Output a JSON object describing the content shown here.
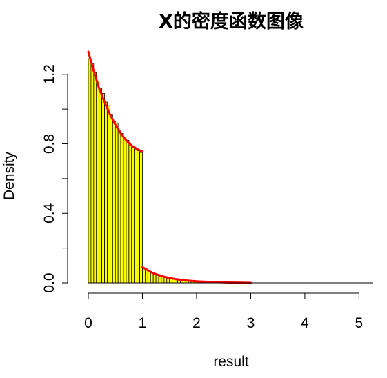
{
  "chart_data": {
    "type": "bar",
    "title": "X的密度函数图像",
    "xlabel": "result",
    "ylabel": "Density",
    "xlim": [
      0,
      5.25
    ],
    "ylim": [
      0,
      1.35
    ],
    "x_ticks": [
      "0",
      "1",
      "2",
      "3",
      "4",
      "5"
    ],
    "y_ticks": [
      "0.0",
      "0.4",
      "0.8",
      "1.2"
    ],
    "grid": false,
    "histogram": {
      "bin_width": 0.05,
      "bins": [
        {
          "x": 0.0,
          "y": 1.29
        },
        {
          "x": 0.05,
          "y": 1.26
        },
        {
          "x": 0.1,
          "y": 1.21
        },
        {
          "x": 0.15,
          "y": 1.16
        },
        {
          "x": 0.2,
          "y": 1.12
        },
        {
          "x": 0.25,
          "y": 1.09
        },
        {
          "x": 0.3,
          "y": 1.04
        },
        {
          "x": 0.35,
          "y": 1.02
        },
        {
          "x": 0.4,
          "y": 0.97
        },
        {
          "x": 0.45,
          "y": 0.93
        },
        {
          "x": 0.5,
          "y": 0.92
        },
        {
          "x": 0.55,
          "y": 0.88
        },
        {
          "x": 0.6,
          "y": 0.86
        },
        {
          "x": 0.65,
          "y": 0.83
        },
        {
          "x": 0.7,
          "y": 0.82
        },
        {
          "x": 0.75,
          "y": 0.79
        },
        {
          "x": 0.8,
          "y": 0.78
        },
        {
          "x": 0.85,
          "y": 0.77
        },
        {
          "x": 0.9,
          "y": 0.76
        },
        {
          "x": 0.95,
          "y": 0.75
        },
        {
          "x": 1.0,
          "y": 0.085
        },
        {
          "x": 1.05,
          "y": 0.075
        },
        {
          "x": 1.1,
          "y": 0.065
        },
        {
          "x": 1.15,
          "y": 0.057
        },
        {
          "x": 1.2,
          "y": 0.05
        },
        {
          "x": 1.25,
          "y": 0.044
        },
        {
          "x": 1.3,
          "y": 0.038
        },
        {
          "x": 1.35,
          "y": 0.034
        },
        {
          "x": 1.4,
          "y": 0.03
        },
        {
          "x": 1.45,
          "y": 0.026
        },
        {
          "x": 1.5,
          "y": 0.023
        },
        {
          "x": 1.55,
          "y": 0.02
        },
        {
          "x": 1.6,
          "y": 0.017
        },
        {
          "x": 1.65,
          "y": 0.015
        },
        {
          "x": 1.7,
          "y": 0.013
        },
        {
          "x": 1.75,
          "y": 0.011
        },
        {
          "x": 1.8,
          "y": 0.01
        },
        {
          "x": 1.85,
          "y": 0.009
        },
        {
          "x": 1.9,
          "y": 0.008
        },
        {
          "x": 1.95,
          "y": 0.007
        },
        {
          "x": 2.0,
          "y": 0.006
        },
        {
          "x": 2.05,
          "y": 0.005
        },
        {
          "x": 2.1,
          "y": 0.004
        },
        {
          "x": 2.15,
          "y": 0.004
        },
        {
          "x": 2.2,
          "y": 0.003
        },
        {
          "x": 2.25,
          "y": 0.003
        },
        {
          "x": 2.3,
          "y": 0.002
        }
      ],
      "fill_color": "#ffff00",
      "stroke_color": "#000000"
    },
    "density_curve": {
      "color": "#ff0000",
      "segments": [
        [
          [
            0.0,
            1.33
          ],
          [
            0.1,
            1.22
          ],
          [
            0.2,
            1.12
          ],
          [
            0.3,
            1.04
          ],
          [
            0.4,
            0.97
          ],
          [
            0.5,
            0.91
          ],
          [
            0.6,
            0.86
          ],
          [
            0.7,
            0.82
          ],
          [
            0.8,
            0.79
          ],
          [
            0.9,
            0.77
          ],
          [
            1.0,
            0.755
          ]
        ],
        [
          [
            1.0,
            0.09
          ],
          [
            1.2,
            0.055
          ],
          [
            1.4,
            0.035
          ],
          [
            1.6,
            0.022
          ],
          [
            1.8,
            0.014
          ],
          [
            2.0,
            0.009
          ],
          [
            2.2,
            0.006
          ],
          [
            2.4,
            0.004
          ],
          [
            2.6,
            0.002
          ],
          [
            2.8,
            0.001
          ],
          [
            3.0,
            0.0
          ]
        ]
      ]
    }
  }
}
